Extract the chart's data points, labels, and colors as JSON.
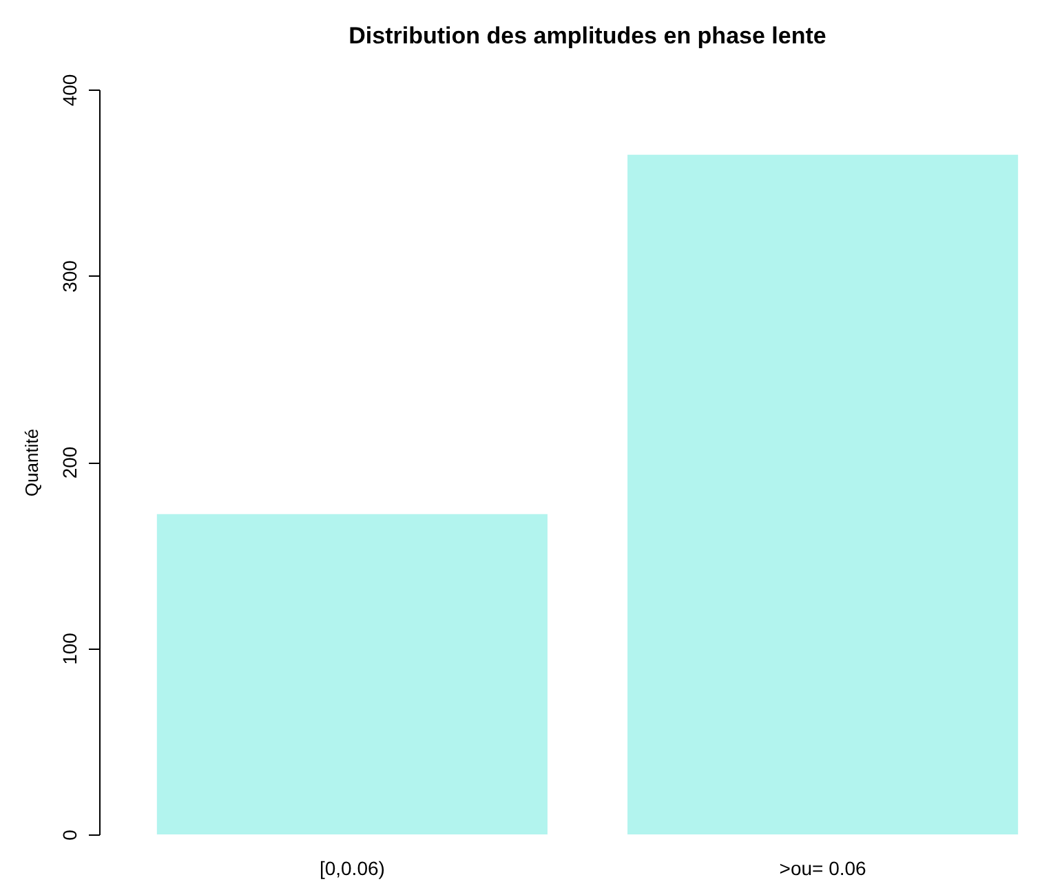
{
  "chart_data": {
    "type": "bar",
    "title": "Distribution des amplitudes en phase lente",
    "ylabel": "Quantité",
    "categories": [
      "[0,0.06)",
      ">ou= 0.06"
    ],
    "values": [
      172,
      365
    ],
    "color": "#b2f4ee",
    "ylim": [
      0,
      400
    ],
    "yticks": [
      0,
      100,
      200,
      300,
      400
    ],
    "grid": false
  }
}
